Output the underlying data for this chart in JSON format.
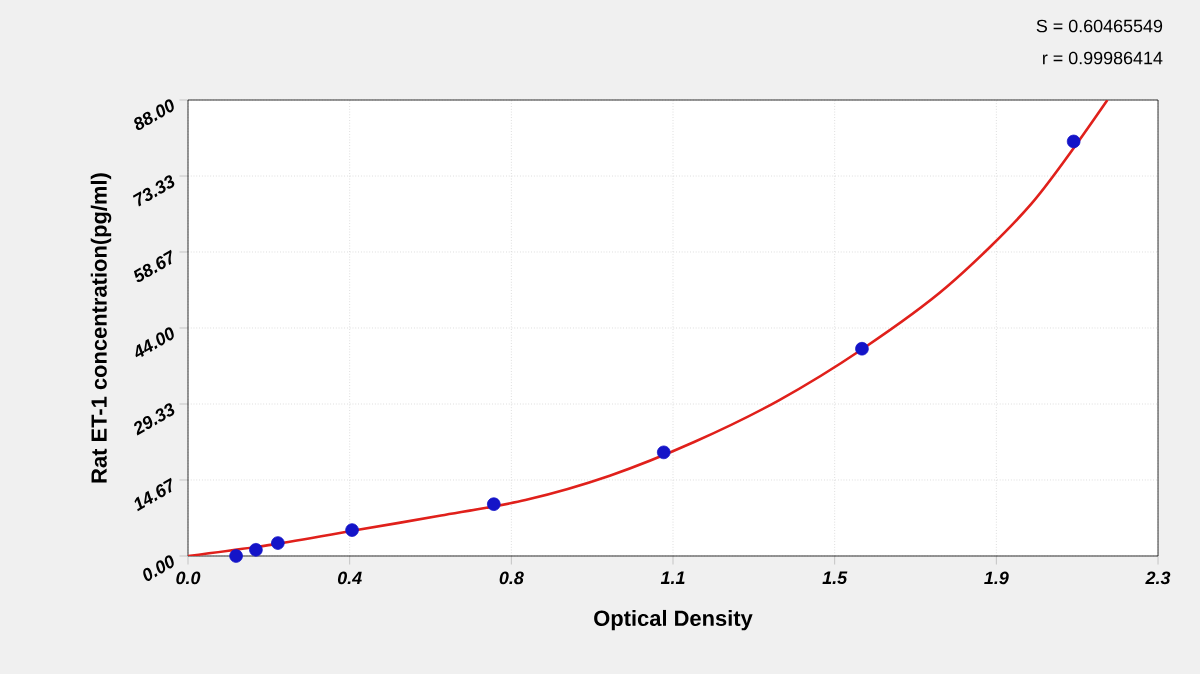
{
  "chart_data": {
    "type": "scatter",
    "xlabel": "Optical Density",
    "ylabel": "Rat ET-1 concentration(pg/ml)",
    "annotations": [
      "S = 0.60465549",
      "r = 0.99986414"
    ],
    "series": [
      {
        "color": "#1414c8",
        "marker": "circle",
        "x": [
          0.114,
          0.161,
          0.213,
          0.389,
          0.725,
          1.128,
          1.598,
          2.1
        ],
        "values": [
          0,
          1.2,
          2.5,
          5,
          10,
          20,
          40,
          80
        ]
      },
      {
        "type": "line",
        "color": "#e0201b",
        "marker": "none",
        "line_style": "solid",
        "x": [
          0,
          0.2,
          0.4,
          0.6,
          0.8,
          1.0,
          1.2,
          1.4,
          1.6,
          1.8,
          2.0,
          2.18
        ],
        "values": [
          0,
          2.2,
          5.0,
          7.8,
          10.8,
          15.5,
          22.0,
          30.0,
          40.0,
          52.0,
          68.0,
          88.0
        ]
      }
    ],
    "xlim": [
      0,
      2.3
    ],
    "xticks": [
      {
        "value": 0,
        "label": "0.0"
      },
      {
        "value": 0.3833,
        "label": "0.4"
      },
      {
        "value": 0.7667,
        "label": "0.8"
      },
      {
        "value": 1.15,
        "label": "1.1"
      },
      {
        "value": 1.5333,
        "label": "1.5"
      },
      {
        "value": 1.9167,
        "label": "1.9"
      },
      2.3
    ],
    "ylim": [
      0,
      88
    ],
    "yticks": [
      {
        "value": 0,
        "label": "0.00"
      },
      14.67,
      29.33,
      {
        "value": 44,
        "label": "44.00"
      },
      58.67,
      73.33,
      {
        "value": 88,
        "label": "88.00"
      }
    ],
    "grid": true
  }
}
